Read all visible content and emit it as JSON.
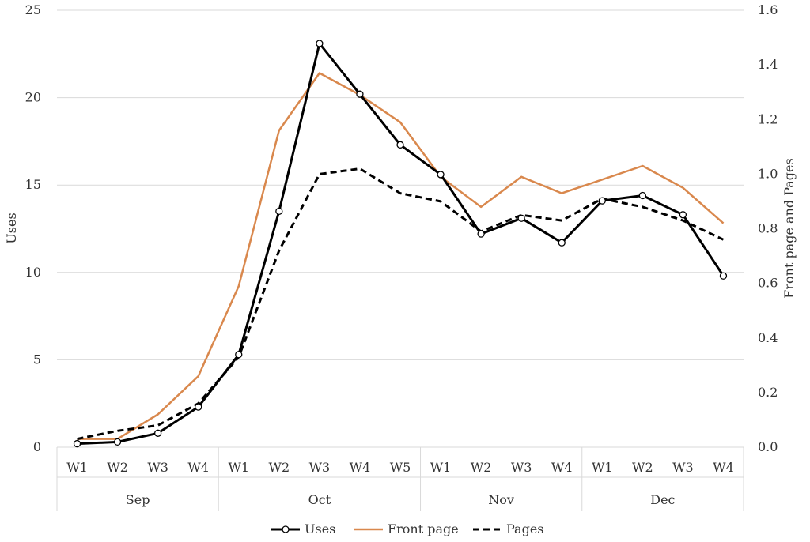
{
  "chart_data": {
    "type": "line",
    "title": "",
    "ylabel": "Uses",
    "y2label": "Front page and Pages",
    "ylim": [
      0,
      25
    ],
    "y2lim": [
      0,
      1.6
    ],
    "yticks": [
      "0",
      "5",
      "10",
      "15",
      "20",
      "25"
    ],
    "y2ticks": [
      "0.0",
      "0.2",
      "0.4",
      "0.6",
      "0.8",
      "1.0",
      "1.2",
      "1.4",
      "1.6"
    ],
    "grid": true,
    "legend_position": "bottom",
    "categories": [
      "W1",
      "W2",
      "W3",
      "W4",
      "W1",
      "W2",
      "W3",
      "W4",
      "W5",
      "W1",
      "W2",
      "W3",
      "W4",
      "W1",
      "W2",
      "W3",
      "W4"
    ],
    "groups": [
      {
        "label": "Sep",
        "count": 4
      },
      {
        "label": "Oct",
        "count": 5
      },
      {
        "label": "Nov",
        "count": 4
      },
      {
        "label": "Dec",
        "count": 4
      }
    ],
    "series": [
      {
        "name": "Uses",
        "axis": "left",
        "color": "#000000",
        "style": "solid-markers",
        "values": [
          0.2,
          0.3,
          0.8,
          2.3,
          5.3,
          13.5,
          23.1,
          20.2,
          17.3,
          15.6,
          12.2,
          13.1,
          11.7,
          14.1,
          14.4,
          13.3,
          9.8
        ]
      },
      {
        "name": "Front page",
        "axis": "right",
        "color": "#d9884d",
        "style": "solid",
        "values": [
          0.03,
          0.03,
          0.12,
          0.26,
          0.59,
          1.16,
          1.37,
          1.29,
          1.19,
          0.99,
          0.88,
          0.99,
          0.93,
          0.98,
          1.03,
          0.95,
          0.82
        ]
      },
      {
        "name": "Pages",
        "axis": "right",
        "color": "#000000",
        "style": "dashed",
        "values": [
          0.03,
          0.06,
          0.08,
          0.16,
          0.33,
          0.72,
          1.0,
          1.02,
          0.93,
          0.9,
          0.79,
          0.85,
          0.83,
          0.91,
          0.88,
          0.83,
          0.76
        ]
      }
    ]
  }
}
